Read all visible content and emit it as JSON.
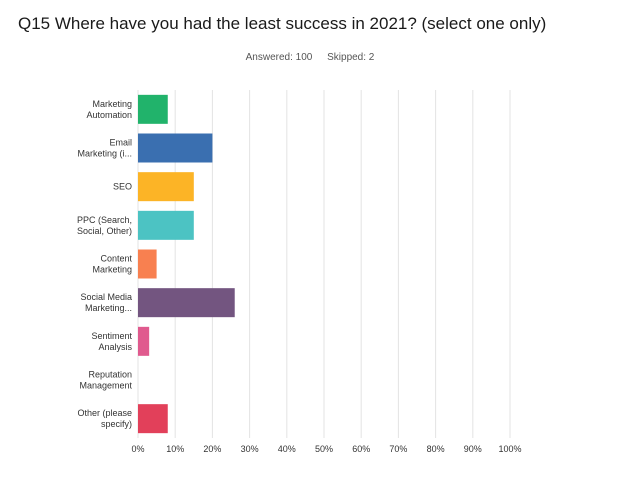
{
  "header": {
    "title": "Q15 Where have you had the least success in 2021? (select one only)",
    "answered": "Answered: 100",
    "skipped": "Skipped: 2"
  },
  "chart_data": {
    "type": "bar",
    "orientation": "horizontal",
    "title": "Q15 Where have you had the least success in 2021? (select one only)",
    "categories": [
      [
        "Marketing",
        "Automation"
      ],
      [
        "Email",
        "Marketing (i..."
      ],
      [
        "SEO"
      ],
      [
        "PPC (Search,",
        "Social, Other)"
      ],
      [
        "Content",
        "Marketing"
      ],
      [
        "Social Media",
        "Marketing..."
      ],
      [
        "Sentiment",
        "Analysis"
      ],
      [
        "Reputation",
        "Management"
      ],
      [
        "Other (please",
        "specify)"
      ]
    ],
    "values": [
      8,
      20,
      15,
      15,
      5,
      26,
      3,
      0,
      8
    ],
    "colors": [
      "#21b36b",
      "#3a6fb0",
      "#fcb426",
      "#4cc3c3",
      "#f88050",
      "#735580",
      "#e05a8e",
      "#cccccc",
      "#e2405a"
    ],
    "xlim": [
      0,
      100
    ],
    "xticks": [
      "0%",
      "10%",
      "20%",
      "30%",
      "40%",
      "50%",
      "60%",
      "70%",
      "80%",
      "90%",
      "100%"
    ],
    "grid": true,
    "legend": "none"
  }
}
